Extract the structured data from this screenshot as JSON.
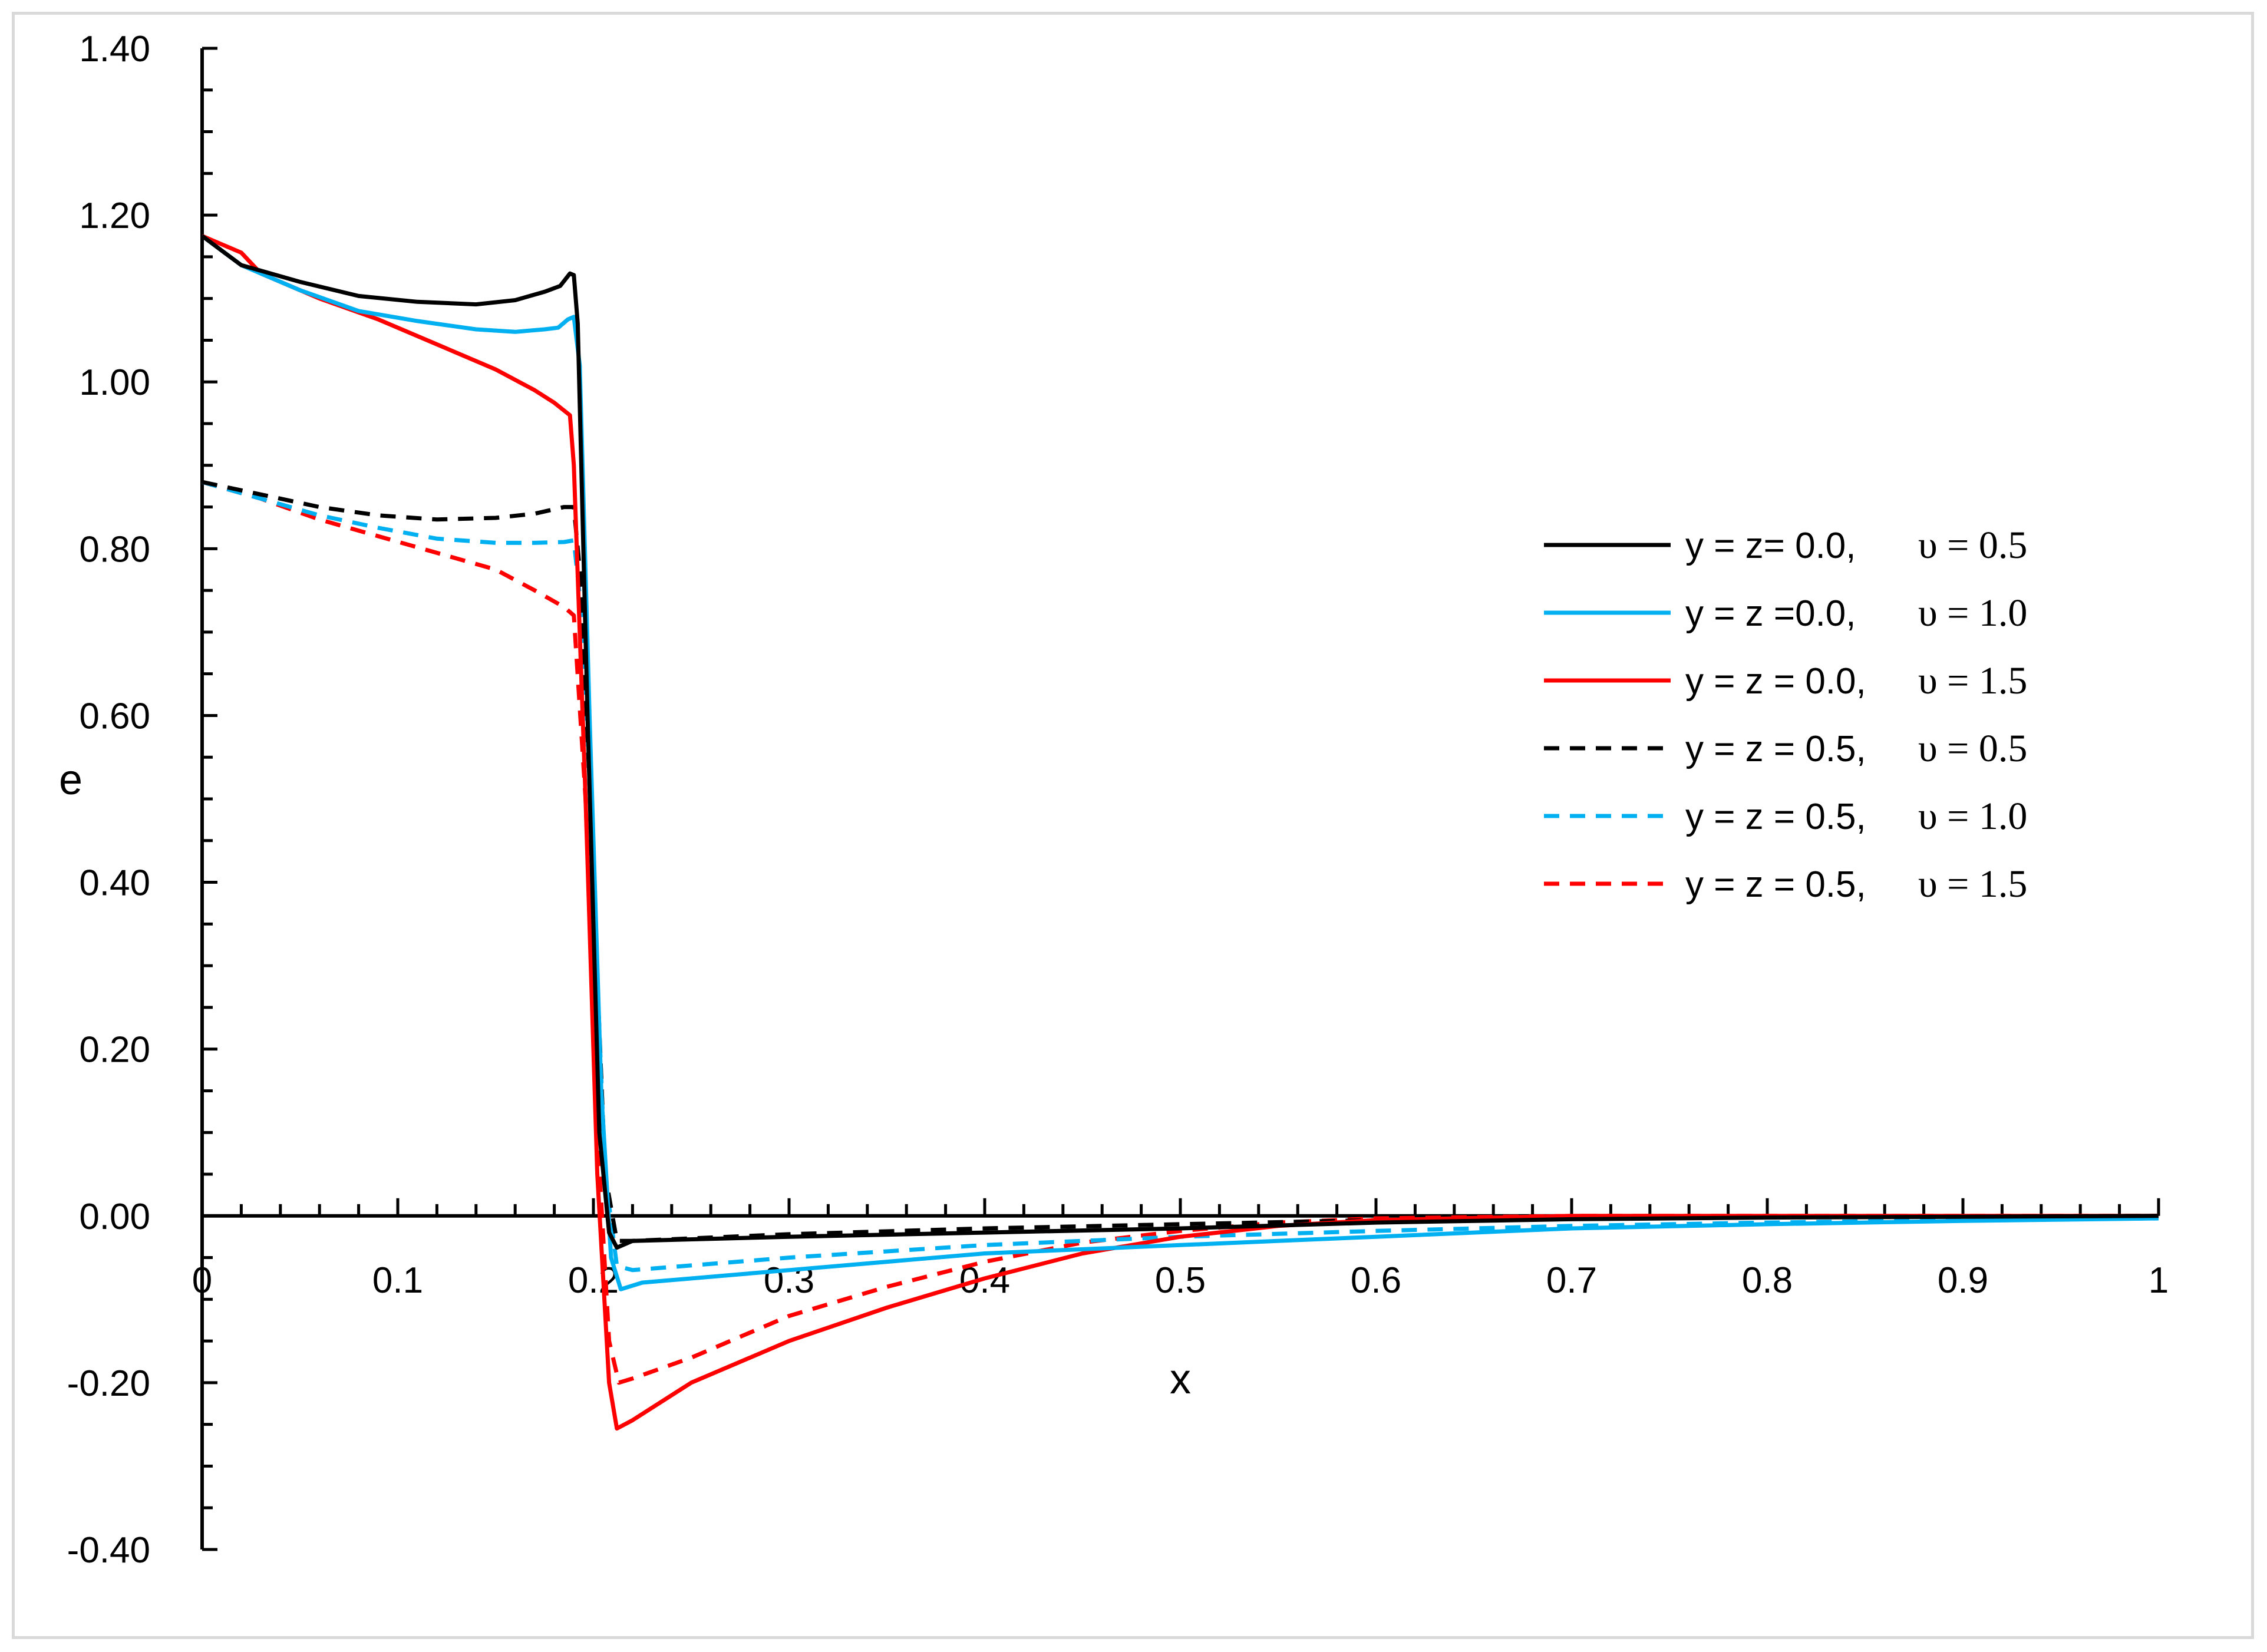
{
  "chart_data": {
    "type": "line",
    "title": "",
    "xlabel": "x",
    "ylabel": "e",
    "xlim": [
      0,
      1
    ],
    "ylim": [
      -0.4,
      1.4
    ],
    "x_ticks": [
      "0",
      "0.1",
      "0.2",
      "0.3",
      "0.4",
      "0.5",
      "0.6",
      "0.7",
      "0.8",
      "0.9",
      "1"
    ],
    "y_ticks": [
      "1.40",
      "1.20",
      "1.00",
      "0.80",
      "0.60",
      "0.40",
      "0.20",
      "0.00",
      "-0.20",
      "-0.40"
    ],
    "grid": false,
    "legend_position": "right",
    "series": [
      {
        "label": "y = z= 0.0,",
        "param": "υ = 0.5",
        "color": "#000000",
        "dash": "solid",
        "points": [
          [
            0,
            1.175
          ],
          [
            0.02,
            1.14
          ],
          [
            0.05,
            1.12
          ],
          [
            0.08,
            1.103
          ],
          [
            0.11,
            1.096
          ],
          [
            0.14,
            1.093
          ],
          [
            0.16,
            1.098
          ],
          [
            0.175,
            1.108
          ],
          [
            0.183,
            1.115
          ],
          [
            0.188,
            1.13
          ],
          [
            0.19,
            1.128
          ],
          [
            0.192,
            1.07
          ],
          [
            0.197,
            0.6
          ],
          [
            0.203,
            0.1
          ],
          [
            0.208,
            -0.02
          ],
          [
            0.212,
            -0.038
          ],
          [
            0.22,
            -0.03
          ],
          [
            0.3,
            -0.025
          ],
          [
            0.4,
            -0.02
          ],
          [
            0.5,
            -0.015
          ],
          [
            0.6,
            -0.008
          ],
          [
            0.7,
            -0.004
          ],
          [
            0.8,
            -0.002
          ],
          [
            0.9,
            -0.001
          ],
          [
            1,
            0
          ]
        ]
      },
      {
        "label": "y = z =0.0,",
        "param": "υ = 1.0",
        "color": "#00b0f0",
        "dash": "solid",
        "points": [
          [
            0,
            1.175
          ],
          [
            0.02,
            1.14
          ],
          [
            0.05,
            1.11
          ],
          [
            0.08,
            1.085
          ],
          [
            0.11,
            1.073
          ],
          [
            0.14,
            1.063
          ],
          [
            0.16,
            1.06
          ],
          [
            0.175,
            1.063
          ],
          [
            0.182,
            1.065
          ],
          [
            0.187,
            1.075
          ],
          [
            0.19,
            1.078
          ],
          [
            0.193,
            1.02
          ],
          [
            0.198,
            0.6
          ],
          [
            0.204,
            0.15
          ],
          [
            0.209,
            -0.05
          ],
          [
            0.214,
            -0.088
          ],
          [
            0.225,
            -0.08
          ],
          [
            0.3,
            -0.065
          ],
          [
            0.4,
            -0.045
          ],
          [
            0.5,
            -0.035
          ],
          [
            0.6,
            -0.025
          ],
          [
            0.7,
            -0.015
          ],
          [
            0.8,
            -0.01
          ],
          [
            0.9,
            -0.006
          ],
          [
            1,
            -0.003
          ]
        ]
      },
      {
        "label": "y = z = 0.0,",
        "param": "υ = 1.5",
        "color": "#ff0000",
        "dash": "solid",
        "points": [
          [
            0,
            1.175
          ],
          [
            0.02,
            1.155
          ],
          [
            0.03,
            1.13
          ],
          [
            0.06,
            1.1
          ],
          [
            0.09,
            1.075
          ],
          [
            0.12,
            1.045
          ],
          [
            0.15,
            1.015
          ],
          [
            0.17,
            0.99
          ],
          [
            0.18,
            0.975
          ],
          [
            0.188,
            0.96
          ],
          [
            0.19,
            0.9
          ],
          [
            0.196,
            0.5
          ],
          [
            0.202,
            0.05
          ],
          [
            0.208,
            -0.2
          ],
          [
            0.212,
            -0.255
          ],
          [
            0.22,
            -0.245
          ],
          [
            0.25,
            -0.2
          ],
          [
            0.3,
            -0.15
          ],
          [
            0.35,
            -0.11
          ],
          [
            0.4,
            -0.075
          ],
          [
            0.45,
            -0.045
          ],
          [
            0.5,
            -0.025
          ],
          [
            0.55,
            -0.012
          ],
          [
            0.6,
            -0.005
          ],
          [
            0.7,
            0
          ],
          [
            1,
            0
          ]
        ]
      },
      {
        "label": "y = z = 0.5,",
        "param": "υ = 0.5",
        "color": "#000000",
        "dash": "dashed",
        "points": [
          [
            0,
            0.88
          ],
          [
            0.03,
            0.865
          ],
          [
            0.06,
            0.85
          ],
          [
            0.09,
            0.84
          ],
          [
            0.12,
            0.835
          ],
          [
            0.15,
            0.837
          ],
          [
            0.17,
            0.842
          ],
          [
            0.185,
            0.85
          ],
          [
            0.19,
            0.85
          ],
          [
            0.194,
            0.75
          ],
          [
            0.2,
            0.4
          ],
          [
            0.206,
            0.05
          ],
          [
            0.212,
            -0.03
          ],
          [
            0.22,
            -0.03
          ],
          [
            0.3,
            -0.022
          ],
          [
            0.4,
            -0.015
          ],
          [
            0.5,
            -0.01
          ],
          [
            0.6,
            -0.005
          ],
          [
            0.7,
            -0.002
          ],
          [
            0.8,
            -0.001
          ],
          [
            1,
            0
          ]
        ]
      },
      {
        "label": "y = z = 0.5,",
        "param": "υ = 1.0",
        "color": "#00b0f0",
        "dash": "dashed",
        "points": [
          [
            0,
            0.88
          ],
          [
            0.03,
            0.86
          ],
          [
            0.06,
            0.84
          ],
          [
            0.09,
            0.825
          ],
          [
            0.12,
            0.812
          ],
          [
            0.15,
            0.807
          ],
          [
            0.17,
            0.807
          ],
          [
            0.185,
            0.808
          ],
          [
            0.19,
            0.81
          ],
          [
            0.195,
            0.7
          ],
          [
            0.2,
            0.4
          ],
          [
            0.206,
            0.05
          ],
          [
            0.212,
            -0.06
          ],
          [
            0.22,
            -0.065
          ],
          [
            0.3,
            -0.05
          ],
          [
            0.4,
            -0.035
          ],
          [
            0.5,
            -0.025
          ],
          [
            0.6,
            -0.018
          ],
          [
            0.7,
            -0.012
          ],
          [
            0.8,
            -0.008
          ],
          [
            0.9,
            -0.005
          ],
          [
            1,
            -0.003
          ]
        ]
      },
      {
        "label": "y = z = 0.5,",
        "param": "υ = 1.5",
        "color": "#ff0000",
        "dash": "dashed",
        "points": [
          [
            0,
            0.88
          ],
          [
            0.03,
            0.86
          ],
          [
            0.06,
            0.835
          ],
          [
            0.09,
            0.815
          ],
          [
            0.12,
            0.795
          ],
          [
            0.15,
            0.775
          ],
          [
            0.17,
            0.75
          ],
          [
            0.185,
            0.73
          ],
          [
            0.19,
            0.72
          ],
          [
            0.196,
            0.5
          ],
          [
            0.202,
            0.1
          ],
          [
            0.208,
            -0.15
          ],
          [
            0.213,
            -0.2
          ],
          [
            0.22,
            -0.195
          ],
          [
            0.25,
            -0.17
          ],
          [
            0.3,
            -0.12
          ],
          [
            0.35,
            -0.085
          ],
          [
            0.4,
            -0.055
          ],
          [
            0.45,
            -0.032
          ],
          [
            0.5,
            -0.018
          ],
          [
            0.55,
            -0.008
          ],
          [
            0.6,
            -0.003
          ],
          [
            0.7,
            0
          ],
          [
            1,
            0
          ]
        ]
      }
    ]
  }
}
